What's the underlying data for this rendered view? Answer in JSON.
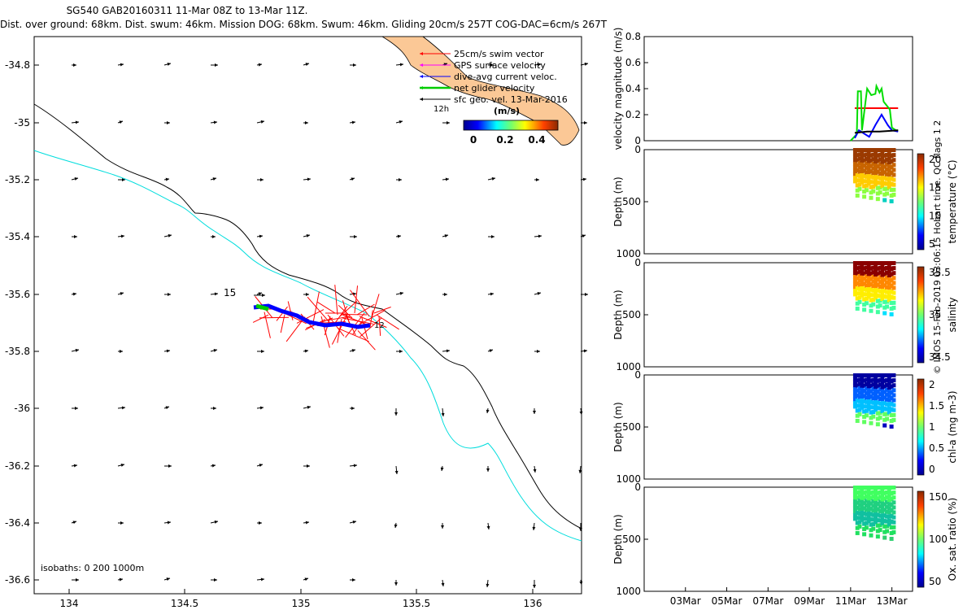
{
  "title_line1": "SG540 GAB20160311 11-Mar 08Z to 13-Mar 11Z.",
  "title_line2": "Dist. over ground: 68km. Dist. swum: 46km. Mission DOG: 68km. Swum: 46km. Gliding 20cm/s 257T COG-DAC=6cm/s 267T",
  "credit": "© IMOS 15-Feb-2019 03:06:15 Hobart time. QC flags 1  2",
  "map": {
    "xticks": [
      "134",
      "134.5",
      "135",
      "135.5",
      "136"
    ],
    "yticks": [
      "-34.8",
      "-35",
      "-35.2",
      "-35.4",
      "-35.6",
      "-35.8",
      "-36",
      "-36.2",
      "-36.4",
      "-36.6"
    ],
    "legend": [
      "25cm/s swim vector",
      "GPS surface velocity",
      "dive-avg current veloc.",
      "net glider velocity",
      "sfc geo. vel. 13-Mar-2016"
    ],
    "legend_colors": [
      "#ff0000",
      "#ff00ff",
      "#0000ff",
      "#00cc00",
      "#000000"
    ],
    "colorbar_unit": "(m/s)",
    "colorbar_ticks": [
      "0",
      "0.2",
      "0.4"
    ],
    "label_12h": "12h",
    "label_15": "15",
    "label_12": "12",
    "isobaths": "isobaths: 0   200  1000m"
  },
  "chart_data": [
    {
      "type": "line",
      "ylabel": "velocity magnitude (m/s)",
      "ylim": [
        0,
        0.8
      ],
      "yticks": [
        "0",
        "0.2",
        "0.4",
        "0.6",
        "0.8"
      ],
      "series": [
        {
          "color": "#ff0000",
          "x": [
            11.2,
            13.3
          ],
          "values": [
            0.25,
            0.25
          ]
        },
        {
          "color": "#00dd00",
          "x": [
            11.0,
            11.3,
            11.35,
            11.5,
            11.55,
            11.8,
            12.0,
            12.2,
            12.25,
            12.4,
            12.5,
            12.6,
            12.8,
            12.9,
            13.0,
            13.2,
            13.3
          ],
          "values": [
            0.0,
            0.05,
            0.38,
            0.38,
            0.08,
            0.4,
            0.35,
            0.36,
            0.42,
            0.37,
            0.4,
            0.3,
            0.26,
            0.24,
            0.1,
            0.08,
            0.08
          ]
        },
        {
          "color": "#0000ff",
          "x": [
            11.2,
            11.4,
            11.6,
            11.9,
            12.2,
            12.5,
            12.8,
            13.0,
            13.3
          ],
          "values": [
            0.02,
            0.08,
            0.06,
            0.03,
            0.12,
            0.2,
            0.12,
            0.08,
            0.07
          ]
        },
        {
          "color": "#000000",
          "x": [
            11.2,
            11.8,
            12.4,
            13.3
          ],
          "values": [
            0.06,
            0.07,
            0.07,
            0.08
          ]
        }
      ]
    },
    {
      "type": "scatter",
      "ylabel": "Depth (m)",
      "ylim": [
        0,
        1000
      ],
      "yticks": [
        "0",
        "500",
        "1000"
      ],
      "colorbar_label": "temperature (°C)",
      "colorbar_ticks": [
        "20",
        "15",
        "10",
        "5"
      ]
    },
    {
      "type": "scatter",
      "ylabel": "Depth (m)",
      "ylim": [
        0,
        1000
      ],
      "yticks": [
        "0",
        "500",
        "1000"
      ],
      "colorbar_label": "salinity",
      "colorbar_ticks": [
        "35.5",
        "35",
        "34.5"
      ]
    },
    {
      "type": "scatter",
      "ylabel": "Depth (m)",
      "ylim": [
        0,
        1000
      ],
      "yticks": [
        "0",
        "500",
        "1000"
      ],
      "colorbar_label": "chl-a (mg m-3)",
      "colorbar_ticks": [
        "2",
        "1.5",
        "1",
        "0.5",
        "0"
      ]
    },
    {
      "type": "scatter",
      "ylabel": "Depth (m)",
      "ylim": [
        0,
        1000
      ],
      "yticks": [
        "0",
        "500",
        "1000"
      ],
      "colorbar_label": "Ox. sat. ratio (%)",
      "colorbar_ticks": [
        "150",
        "100",
        "50"
      ],
      "xticks": [
        "03Mar",
        "05Mar",
        "07Mar",
        "09Mar",
        "11Mar",
        "13Mar"
      ]
    }
  ]
}
